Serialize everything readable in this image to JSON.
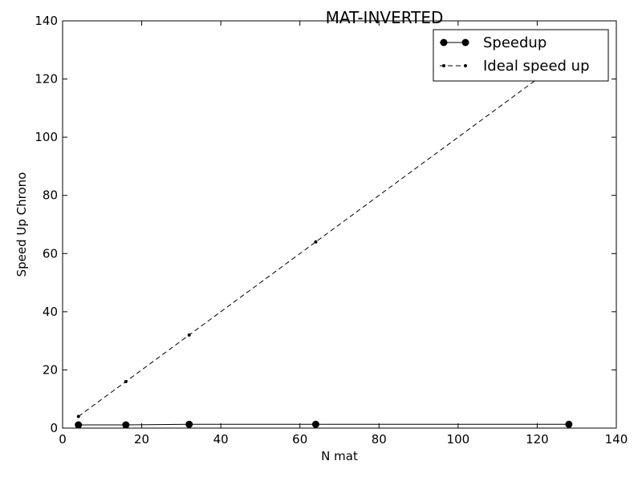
{
  "chart_data": {
    "type": "line",
    "title": "MAT-INVERTED",
    "xlabel": "N mat",
    "ylabel": "Speed Up Chrono",
    "xlim": [
      0,
      140
    ],
    "ylim": [
      0,
      140
    ],
    "xticks": [
      0,
      20,
      40,
      60,
      80,
      100,
      120,
      140
    ],
    "yticks": [
      0,
      20,
      40,
      60,
      80,
      100,
      120,
      140
    ],
    "grid": false,
    "legend_position": "top-right",
    "series": [
      {
        "name": "Speedup",
        "style": "solid",
        "marker": "large-circle",
        "color": "#000000",
        "x": [
          4,
          16,
          32,
          64,
          128
        ],
        "y": [
          1.1,
          1.1,
          1.3,
          1.3,
          1.3
        ]
      },
      {
        "name": "Ideal speed up",
        "style": "dashed",
        "marker": "small-circle",
        "color": "#000000",
        "x": [
          4,
          16,
          32,
          64,
          128
        ],
        "y": [
          4,
          16,
          32,
          64,
          128
        ]
      }
    ]
  }
}
